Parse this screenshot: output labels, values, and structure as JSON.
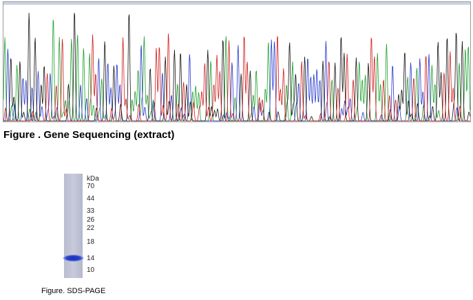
{
  "figure1": {
    "caption": "Figure . Gene Sequencing (extract)"
  },
  "figure2": {
    "unit": "kDa",
    "markers": [
      "70",
      "44",
      "33",
      "26",
      "22",
      "18",
      "14",
      "10"
    ],
    "caption": "Figure. SDS-PAGE"
  }
}
